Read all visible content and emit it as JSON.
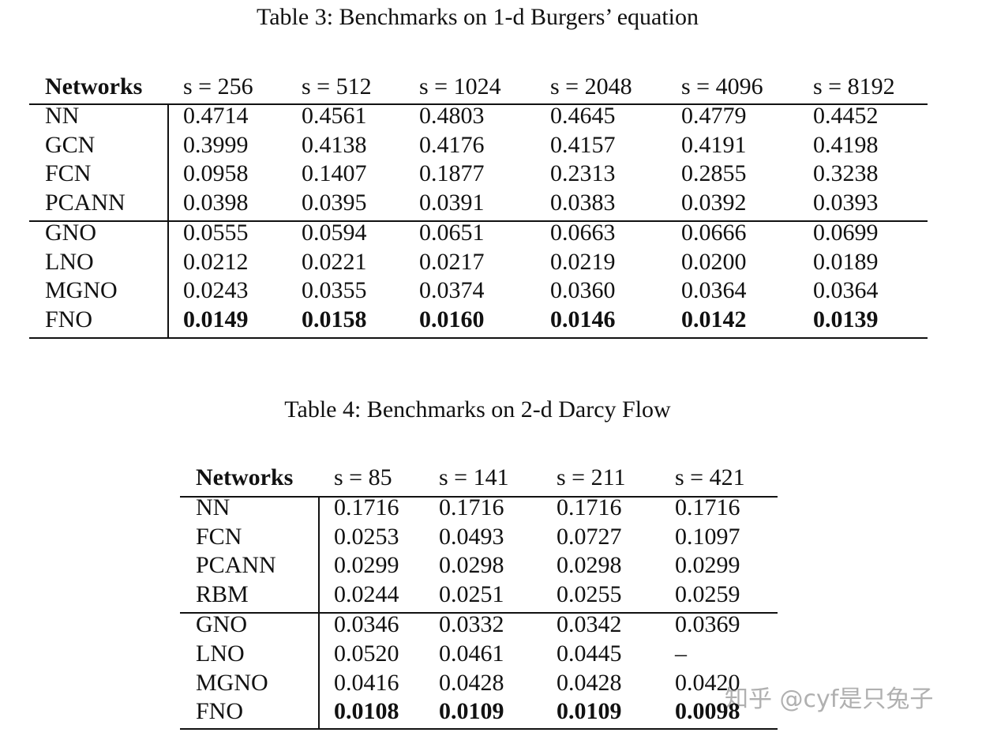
{
  "tables": [
    {
      "title": "Table 3: Benchmarks on 1-d Burgers’ equation",
      "header": [
        "Networks",
        "s = 256",
        "s = 512",
        "s = 1024",
        "s = 2048",
        "s = 4096",
        "s = 8192"
      ],
      "rows": [
        [
          "NN",
          "0.4714",
          "0.4561",
          "0.4803",
          "0.4645",
          "0.4779",
          "0.4452"
        ],
        [
          "GCN",
          "0.3999",
          "0.4138",
          "0.4176",
          "0.4157",
          "0.4191",
          "0.4198"
        ],
        [
          "FCN",
          "0.0958",
          "0.1407",
          "0.1877",
          "0.2313",
          "0.2855",
          "0.3238"
        ],
        [
          "PCANN",
          "0.0398",
          "0.0395",
          "0.0391",
          "0.0383",
          "0.0392",
          "0.0393"
        ],
        [
          "GNO",
          "0.0555",
          "0.0594",
          "0.0651",
          "0.0663",
          "0.0666",
          "0.0699"
        ],
        [
          "LNO",
          "0.0212",
          "0.0221",
          "0.0217",
          "0.0219",
          "0.0200",
          "0.0189"
        ],
        [
          "MGNO",
          "0.0243",
          "0.0355",
          "0.0374",
          "0.0360",
          "0.0364",
          "0.0364"
        ],
        [
          "FNO",
          "0.0149",
          "0.0158",
          "0.0160",
          "0.0146",
          "0.0142",
          "0.0139"
        ]
      ]
    },
    {
      "title": "Table 4: Benchmarks on 2-d Darcy Flow",
      "header": [
        "Networks",
        "s = 85",
        "s = 141",
        "s = 211",
        "s = 421"
      ],
      "rows": [
        [
          "NN",
          "0.1716",
          "0.1716",
          "0.1716",
          "0.1716"
        ],
        [
          "FCN",
          "0.0253",
          "0.0493",
          "0.0727",
          "0.1097"
        ],
        [
          "PCANN",
          "0.0299",
          "0.0298",
          "0.0298",
          "0.0299"
        ],
        [
          "RBM",
          "0.0244",
          "0.0251",
          "0.0255",
          "0.0259"
        ],
        [
          "GNO",
          "0.0346",
          "0.0332",
          "0.0342",
          "0.0369"
        ],
        [
          "LNO",
          "0.0520",
          "0.0461",
          "0.0445",
          "–"
        ],
        [
          "MGNO",
          "0.0416",
          "0.0428",
          "0.0428",
          "0.0420"
        ],
        [
          "FNO",
          "0.0108",
          "0.0109",
          "0.0109",
          "0.0098"
        ]
      ]
    }
  ],
  "watermark": "知乎 @cyf是只兔子"
}
